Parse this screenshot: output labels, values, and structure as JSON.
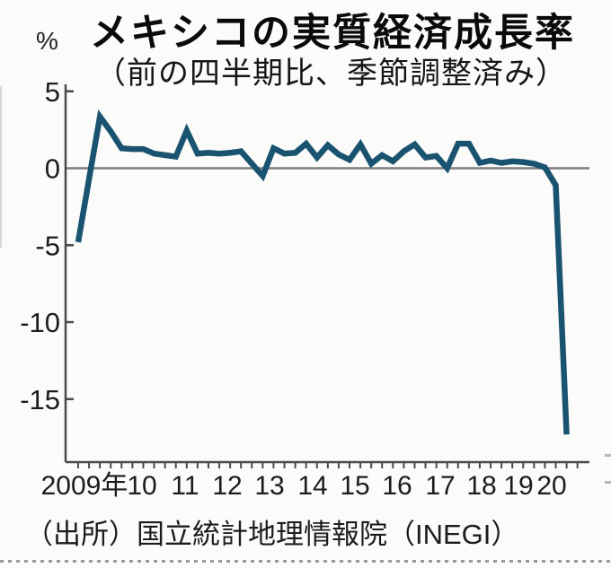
{
  "chart": {
    "unit_label": "%",
    "title": "メキシコの実質経済成長率",
    "subtitle": "（前の四半期比、季節調整済み）",
    "source": "（出所）国立統計地理情報院（INEGI）"
  },
  "colors": {
    "line": "#1a536f",
    "axis": "#4a4a4a",
    "zero_line": "#7d7d7d",
    "tick_text": "#1c1c1c",
    "background": "#fbfbfa",
    "divider": "#9a9a9a"
  },
  "chart_data": {
    "type": "line",
    "title": "メキシコの実質経済成長率",
    "subtitle": "（前の四半期比、季節調整済み）",
    "source": "（出所）国立統計地理情報院（INEGI）",
    "ylabel": "%",
    "frequency": "quarterly",
    "period_start": "2009Q1",
    "period_end": "2020Q2",
    "x_tick_labels": [
      "2009年",
      "10",
      "11",
      "12",
      "13",
      "14",
      "15",
      "16",
      "17",
      "18",
      "19",
      "20"
    ],
    "y_ticks": [
      5,
      0,
      -5,
      -10,
      -15
    ],
    "ylim": [
      -19,
      5.5
    ],
    "grid": "zero-line-only",
    "legend": "none",
    "values": [
      -4.8,
      -0.7,
      3.35,
      2.4,
      1.3,
      1.25,
      1.25,
      0.95,
      0.85,
      0.75,
      2.45,
      0.95,
      1.0,
      0.95,
      1.0,
      1.1,
      0.3,
      -0.5,
      1.3,
      0.95,
      1.0,
      1.6,
      0.7,
      1.5,
      0.9,
      0.55,
      1.55,
      0.3,
      0.85,
      0.45,
      1.1,
      1.55,
      0.7,
      0.8,
      0.0,
      1.6,
      1.6,
      0.35,
      0.5,
      0.35,
      0.45,
      0.4,
      0.3,
      0.05,
      -1.1,
      -17.3
    ]
  }
}
